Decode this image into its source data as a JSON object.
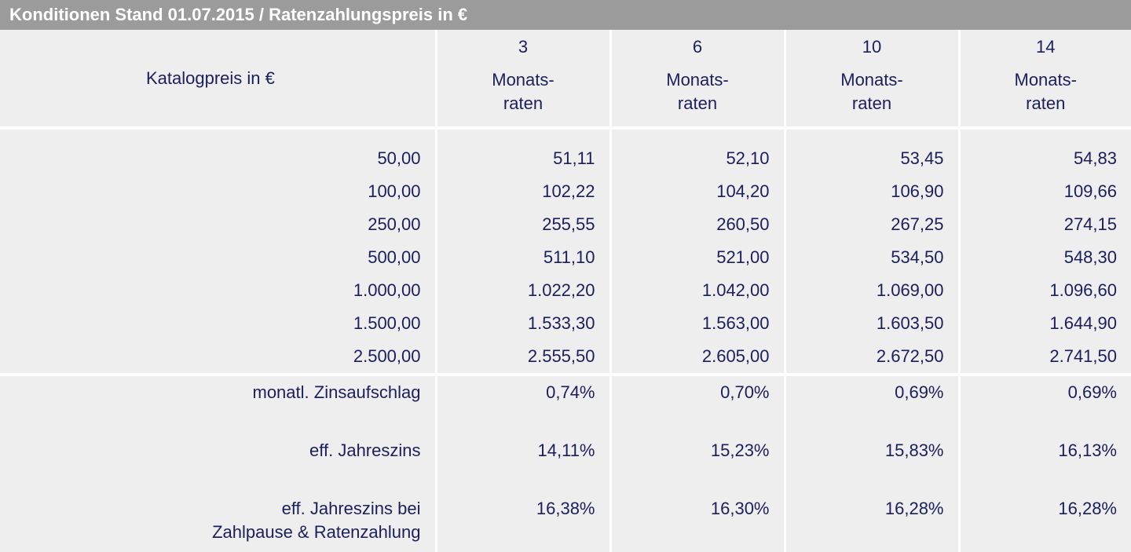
{
  "title": "Konditionen Stand 01.07.2015 / Ratenzahlungspreis in €",
  "header": {
    "label": "Katalogpreis in €",
    "columns": [
      {
        "months": "3",
        "line1": "Monats-",
        "line2": "raten"
      },
      {
        "months": "6",
        "line1": "Monats-",
        "line2": "raten"
      },
      {
        "months": "10",
        "line1": "Monats-",
        "line2": "raten"
      },
      {
        "months": "14",
        "line1": "Monats-",
        "line2": "raten"
      }
    ]
  },
  "prices": [
    {
      "label": "50,00",
      "values": [
        "51,11",
        "52,10",
        "53,45",
        "54,83"
      ]
    },
    {
      "label": "100,00",
      "values": [
        "102,22",
        "104,20",
        "106,90",
        "109,66"
      ]
    },
    {
      "label": "250,00",
      "values": [
        "255,55",
        "260,50",
        "267,25",
        "274,15"
      ]
    },
    {
      "label": "500,00",
      "values": [
        "511,10",
        "521,00",
        "534,50",
        "548,30"
      ]
    },
    {
      "label": "1.000,00",
      "values": [
        "1.022,20",
        "1.042,00",
        "1.069,00",
        "1.096,60"
      ]
    },
    {
      "label": "1.500,00",
      "values": [
        "1.533,30",
        "1.563,00",
        "1.603,50",
        "1.644,90"
      ]
    },
    {
      "label": "2.500,00",
      "values": [
        "2.555,50",
        "2.605,00",
        "2.672,50",
        "2.741,50"
      ]
    }
  ],
  "rates": [
    {
      "label": "monatl. Zinsaufschlag",
      "label2": "",
      "values": [
        "0,74%",
        "0,70%",
        "0,69%",
        "0,69%"
      ]
    },
    {
      "label": "eff. Jahreszins",
      "label2": "",
      "values": [
        "14,11%",
        "15,23%",
        "15,83%",
        "16,13%"
      ]
    },
    {
      "label": "eff. Jahreszins bei",
      "label2": "Zahlpause & Ratenzahlung",
      "values": [
        "16,38%",
        "16,30%",
        "16,28%",
        "16,28%"
      ]
    }
  ]
}
